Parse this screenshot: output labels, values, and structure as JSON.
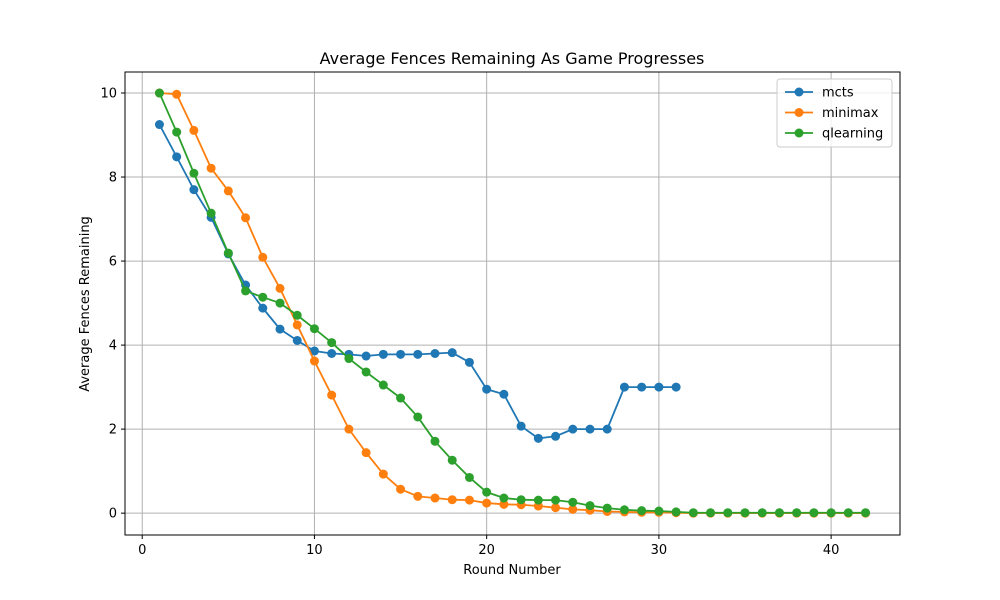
{
  "chart_data": {
    "type": "line",
    "title": "Average Fences Remaining As Game Progresses",
    "xlabel": "Round Number",
    "ylabel": "Average Fences Remaining",
    "xlim": [
      -1,
      44
    ],
    "ylim": [
      -0.52,
      10.5
    ],
    "xticks": [
      0,
      10,
      20,
      30,
      40
    ],
    "yticks": [
      0,
      2,
      4,
      6,
      8,
      10
    ],
    "grid": true,
    "legend_position": "top-right",
    "series": [
      {
        "name": "mcts",
        "color": "#1f77b4",
        "x": [
          1,
          2,
          3,
          4,
          5,
          6,
          7,
          8,
          9,
          10,
          11,
          12,
          13,
          14,
          15,
          16,
          17,
          18,
          19,
          20,
          21,
          22,
          23,
          24,
          25,
          26,
          27,
          28,
          29,
          30,
          31
        ],
        "y": [
          9.25,
          8.48,
          7.7,
          7.04,
          6.17,
          5.43,
          4.88,
          4.38,
          4.11,
          3.86,
          3.8,
          3.78,
          3.74,
          3.78,
          3.78,
          3.78,
          3.8,
          3.82,
          3.59,
          2.95,
          2.83,
          2.07,
          1.78,
          1.83,
          2.0,
          2.0,
          2.0,
          3.0,
          3.0,
          3.0,
          3.0
        ]
      },
      {
        "name": "minimax",
        "color": "#ff7f0e",
        "x": [
          1,
          2,
          3,
          4,
          5,
          6,
          7,
          8,
          9,
          10,
          11,
          12,
          13,
          14,
          15,
          16,
          17,
          18,
          19,
          20,
          21,
          22,
          23,
          24,
          25,
          26,
          27,
          28,
          29,
          30,
          31,
          32,
          33,
          34,
          35,
          36,
          37,
          38,
          39,
          40,
          41,
          42
        ],
        "y": [
          10.0,
          9.97,
          9.11,
          8.21,
          7.67,
          7.03,
          6.09,
          5.35,
          4.48,
          3.62,
          2.81,
          2.0,
          1.44,
          0.93,
          0.57,
          0.4,
          0.36,
          0.32,
          0.31,
          0.24,
          0.21,
          0.2,
          0.17,
          0.13,
          0.09,
          0.07,
          0.04,
          0.03,
          0.02,
          0.02,
          0.01,
          0.0,
          0.0,
          0.0,
          0.0,
          0.0,
          0.0,
          0.0,
          0.0,
          0.0,
          0.0,
          0.0
        ]
      },
      {
        "name": "qlearning",
        "color": "#2ca02c",
        "x": [
          1,
          2,
          3,
          4,
          5,
          6,
          7,
          8,
          9,
          10,
          11,
          12,
          13,
          14,
          15,
          16,
          17,
          18,
          19,
          20,
          21,
          22,
          23,
          24,
          25,
          26,
          27,
          28,
          29,
          30,
          31,
          32,
          33,
          34,
          35,
          36,
          37,
          38,
          39,
          40,
          41,
          42
        ],
        "y": [
          10.0,
          9.07,
          8.09,
          7.14,
          6.19,
          5.29,
          5.14,
          5.0,
          4.71,
          4.39,
          4.06,
          3.68,
          3.36,
          3.05,
          2.74,
          2.29,
          1.71,
          1.26,
          0.85,
          0.5,
          0.36,
          0.32,
          0.31,
          0.31,
          0.26,
          0.18,
          0.12,
          0.08,
          0.06,
          0.05,
          0.03,
          0.01,
          0.01,
          0.01,
          0.01,
          0.01,
          0.01,
          0.01,
          0.01,
          0.01,
          0.01,
          0.01
        ]
      }
    ]
  }
}
